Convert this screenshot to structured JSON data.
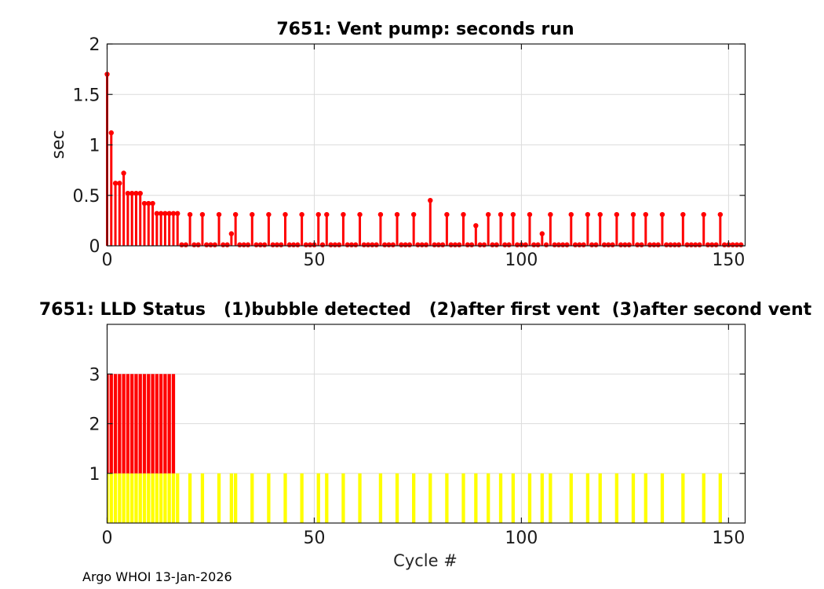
{
  "figure": {
    "footer_credit": "Argo WHOI 13-Jan-2026"
  },
  "chart_data": [
    {
      "type": "stem",
      "title": "7651: Vent pump: seconds run",
      "xlabel": "",
      "ylabel": "sec",
      "xlim": [
        0,
        154
      ],
      "ylim": [
        0,
        2
      ],
      "xticks": [
        0,
        50,
        100,
        150
      ],
      "yticks": [
        0,
        0.5,
        1,
        1.5,
        2
      ],
      "grid": true,
      "legend_position": "none",
      "series_color": "#ff0000",
      "x_start": 0,
      "x_meaning": "cycle number (index = cycle)",
      "values": [
        1.7,
        1.12,
        0.62,
        0.62,
        0.72,
        0.52,
        0.52,
        0.52,
        0.52,
        0.42,
        0.42,
        0.42,
        0.32,
        0.32,
        0.32,
        0.32,
        0.32,
        0.32,
        0.01,
        0.01,
        0.31,
        0.01,
        0.01,
        0.31,
        0.01,
        0.01,
        0.01,
        0.31,
        0.01,
        0.01,
        0.12,
        0.31,
        0.01,
        0.01,
        0.01,
        0.31,
        0.01,
        0.01,
        0.01,
        0.31,
        0.01,
        0.01,
        0.01,
        0.31,
        0.01,
        0.01,
        0.01,
        0.31,
        0.01,
        0.01,
        0.01,
        0.31,
        0.01,
        0.31,
        0.01,
        0.01,
        0.01,
        0.31,
        0.01,
        0.01,
        0.01,
        0.31,
        0.01,
        0.01,
        0.01,
        0.01,
        0.31,
        0.01,
        0.01,
        0.01,
        0.31,
        0.01,
        0.01,
        0.01,
        0.31,
        0.01,
        0.01,
        0.01,
        0.45,
        0.01,
        0.01,
        0.01,
        0.31,
        0.01,
        0.01,
        0.01,
        0.31,
        0.01,
        0.01,
        0.2,
        0.01,
        0.01,
        0.31,
        0.01,
        0.01,
        0.31,
        0.01,
        0.01,
        0.31,
        0.01,
        0.01,
        0.01,
        0.31,
        0.01,
        0.01,
        0.12,
        0.01,
        0.31,
        0.01,
        0.01,
        0.01,
        0.01,
        0.31,
        0.01,
        0.01,
        0.01,
        0.31,
        0.01,
        0.01,
        0.31,
        0.01,
        0.01,
        0.01,
        0.31,
        0.01,
        0.01,
        0.01,
        0.31,
        0.01,
        0.01,
        0.31,
        0.01,
        0.01,
        0.01,
        0.31,
        0.01,
        0.01,
        0.01,
        0.01,
        0.31,
        0.01,
        0.01,
        0.01,
        0.01,
        0.31,
        0.01,
        0.01,
        0.01,
        0.31,
        0.01,
        0.01,
        0.01,
        0.01,
        0.01
      ]
    },
    {
      "type": "bar",
      "title": "7651: LLD Status   (1)bubble detected   (2)after first vent  (3)after second vent",
      "xlabel": "Cycle #",
      "ylabel": "",
      "xlim": [
        0,
        154
      ],
      "ylim": [
        0,
        4
      ],
      "xticks": [
        0,
        50,
        100,
        150
      ],
      "yticks": [
        1,
        2,
        3
      ],
      "grid": true,
      "bar_colors": {
        "base_segment": "#ffff00",
        "upper_segment": "#ff0000"
      },
      "bar_rule": "status>=1 draws yellow bar 0..1; status==3 additionally draws red bar 1..3",
      "x_start": 0,
      "x_meaning": "cycle number (index = cycle)",
      "values": [
        3,
        3,
        3,
        3,
        3,
        3,
        3,
        3,
        3,
        3,
        3,
        3,
        3,
        3,
        3,
        3,
        3,
        1,
        0,
        0,
        1,
        0,
        0,
        1,
        0,
        0,
        0,
        1,
        0,
        0,
        1,
        1,
        0,
        0,
        0,
        1,
        0,
        0,
        0,
        1,
        0,
        0,
        0,
        1,
        0,
        0,
        0,
        1,
        0,
        0,
        0,
        1,
        0,
        1,
        0,
        0,
        0,
        1,
        0,
        0,
        0,
        1,
        0,
        0,
        0,
        0,
        1,
        0,
        0,
        0,
        1,
        0,
        0,
        0,
        1,
        0,
        0,
        0,
        1,
        0,
        0,
        0,
        1,
        0,
        0,
        0,
        1,
        0,
        0,
        1,
        0,
        0,
        1,
        0,
        0,
        1,
        0,
        0,
        1,
        0,
        0,
        0,
        1,
        0,
        0,
        1,
        0,
        1,
        0,
        0,
        0,
        0,
        1,
        0,
        0,
        0,
        1,
        0,
        0,
        1,
        0,
        0,
        0,
        1,
        0,
        0,
        0,
        1,
        0,
        0,
        1,
        0,
        0,
        0,
        1,
        0,
        0,
        0,
        0,
        1,
        0,
        0,
        0,
        0,
        1,
        0,
        0,
        0,
        1,
        0,
        0,
        0,
        0,
        0
      ]
    }
  ]
}
